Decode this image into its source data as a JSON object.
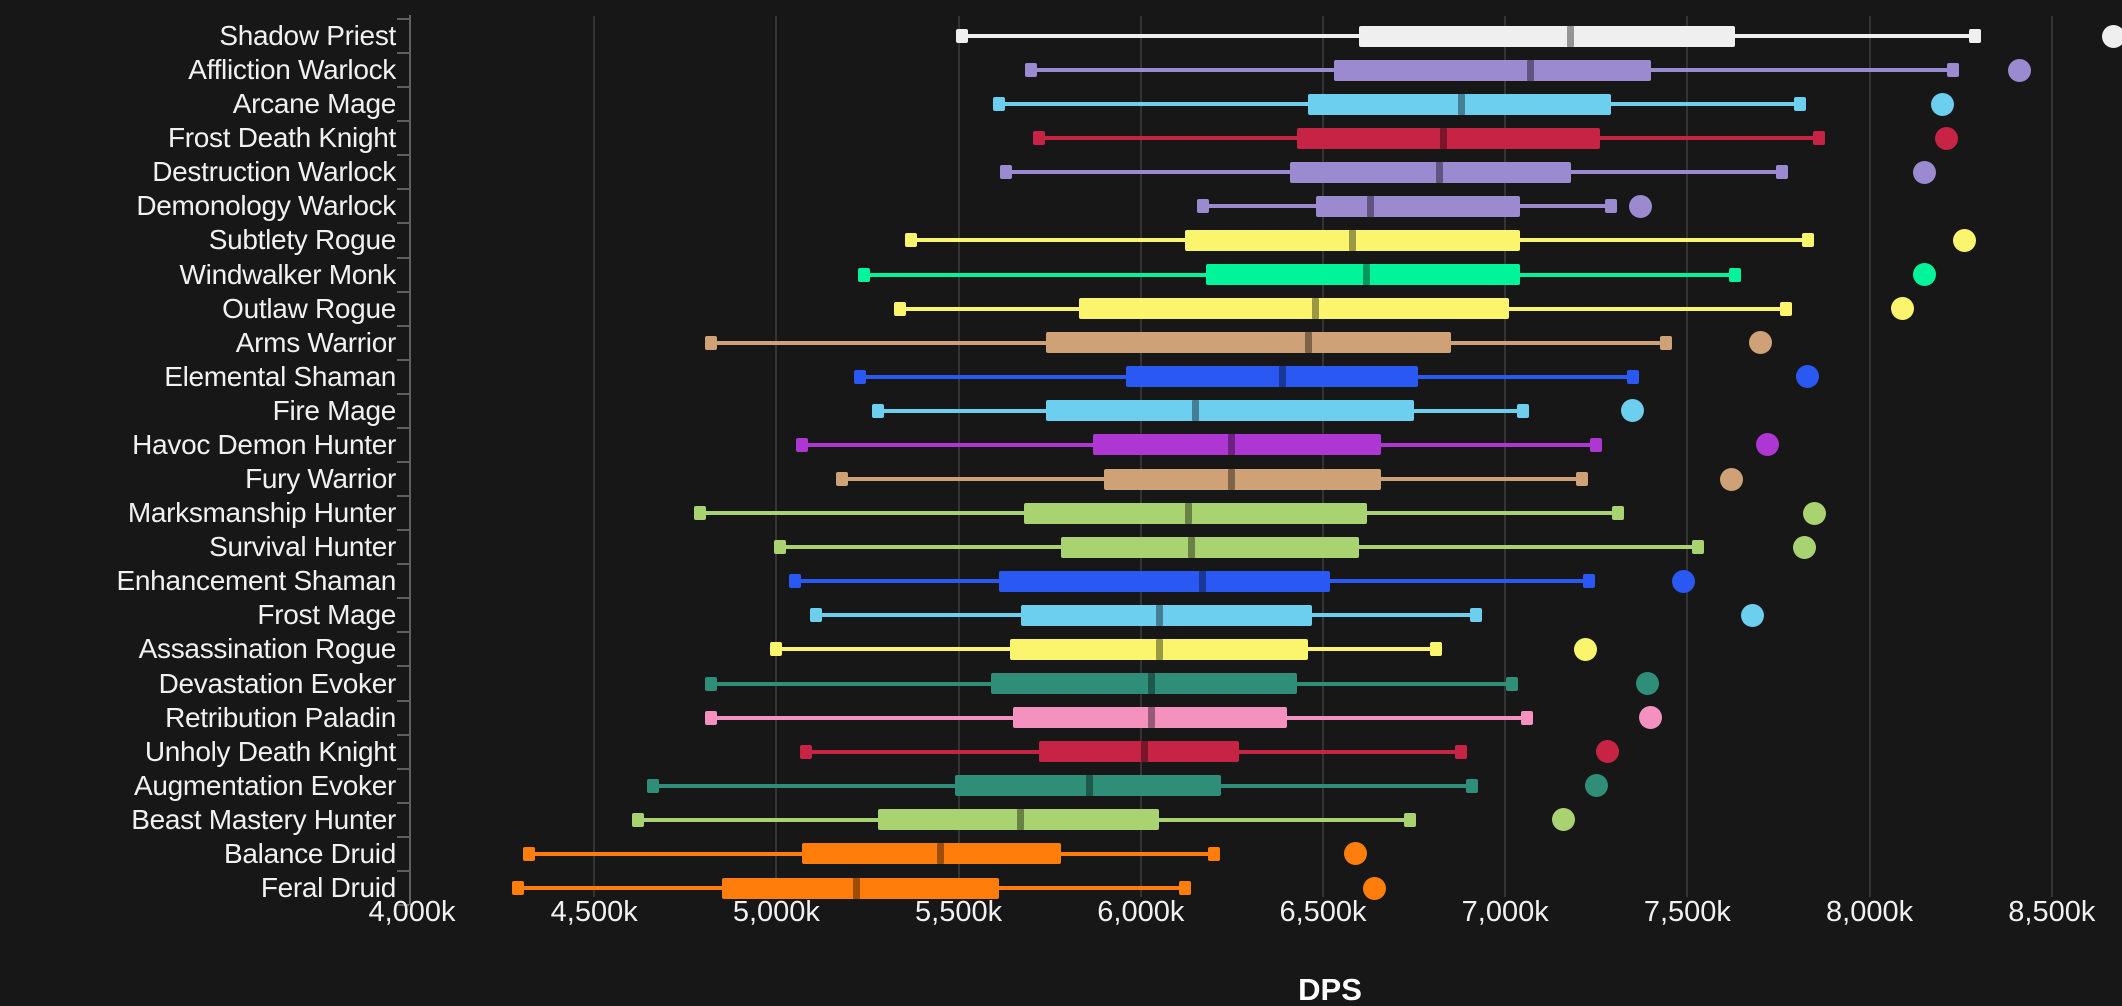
{
  "chart": {
    "xlabel": "DPS",
    "background_color": "#171717",
    "grid_color": "#343434",
    "axis_color": "#5f5f5f",
    "text_color": "#f1f1f1"
  },
  "chart_data": {
    "type": "boxplot",
    "orientation": "horizontal",
    "title": "",
    "xlabel": "DPS",
    "ylabel": "",
    "unit": "k (thousands of DPS)",
    "xlim": [
      4000,
      8700
    ],
    "grid": "vertical-only",
    "x_tick_labels": [
      "4,000k",
      "4,500k",
      "5,000k",
      "5,500k",
      "6,000k",
      "6,500k",
      "7,000k",
      "7,500k",
      "8,000k",
      "8,500k"
    ],
    "x_tick_values": [
      4000,
      4500,
      5000,
      5500,
      6000,
      6500,
      7000,
      7500,
      8000,
      8500
    ],
    "class_colors": {
      "priest": "#EFEFEF",
      "warlock": "#9B8AD0",
      "mage": "#6DCFF0",
      "death-knight": "#C62345",
      "rogue": "#FBF56E",
      "monk": "#00F59B",
      "warrior": "#CEA177",
      "shaman": "#2A58F2",
      "demon-hunter": "#AE36D3",
      "hunter": "#A9D271",
      "evoker": "#2F8E78",
      "paladin": "#F491BE",
      "druid": "#FF7D0A"
    },
    "series": [
      {
        "label": "Shadow Priest",
        "class": "priest",
        "whisker_min": 5510,
        "q1": 6600,
        "median": 7180,
        "q3": 7630,
        "whisker_max": 8290,
        "outlier_max": 8670
      },
      {
        "label": "Affliction Warlock",
        "class": "warlock",
        "whisker_min": 5700,
        "q1": 6530,
        "median": 7070,
        "q3": 7400,
        "whisker_max": 8230,
        "outlier_max": 8410
      },
      {
        "label": "Arcane Mage",
        "class": "mage",
        "whisker_min": 5610,
        "q1": 6460,
        "median": 6880,
        "q3": 7290,
        "whisker_max": 7810,
        "outlier_max": 8200
      },
      {
        "label": "Frost Death Knight",
        "class": "death-knight",
        "whisker_min": 5720,
        "q1": 6430,
        "median": 6830,
        "q3": 7260,
        "whisker_max": 7860,
        "outlier_max": 8210
      },
      {
        "label": "Destruction Warlock",
        "class": "warlock",
        "whisker_min": 5630,
        "q1": 6410,
        "median": 6820,
        "q3": 7180,
        "whisker_max": 7760,
        "outlier_max": 8150
      },
      {
        "label": "Demonology Warlock",
        "class": "warlock",
        "whisker_min": 6170,
        "q1": 6480,
        "median": 6630,
        "q3": 7040,
        "whisker_max": 7290,
        "outlier_max": 7370
      },
      {
        "label": "Subtlety Rogue",
        "class": "rogue",
        "whisker_min": 5370,
        "q1": 6120,
        "median": 6580,
        "q3": 7040,
        "whisker_max": 7830,
        "outlier_max": 8260
      },
      {
        "label": "Windwalker Monk",
        "class": "monk",
        "whisker_min": 5240,
        "q1": 6180,
        "median": 6620,
        "q3": 7040,
        "whisker_max": 7630,
        "outlier_max": 8150
      },
      {
        "label": "Outlaw Rogue",
        "class": "rogue",
        "whisker_min": 5340,
        "q1": 5830,
        "median": 6480,
        "q3": 7010,
        "whisker_max": 7770,
        "outlier_max": 8090
      },
      {
        "label": "Arms Warrior",
        "class": "warrior",
        "whisker_min": 4820,
        "q1": 5740,
        "median": 6460,
        "q3": 6850,
        "whisker_max": 7440,
        "outlier_max": 7700
      },
      {
        "label": "Elemental Shaman",
        "class": "shaman",
        "whisker_min": 5230,
        "q1": 5960,
        "median": 6390,
        "q3": 6760,
        "whisker_max": 7350,
        "outlier_max": 7830
      },
      {
        "label": "Fire Mage",
        "class": "mage",
        "whisker_min": 5280,
        "q1": 5740,
        "median": 6150,
        "q3": 6750,
        "whisker_max": 7050,
        "outlier_max": 7350
      },
      {
        "label": "Havoc Demon Hunter",
        "class": "demon-hunter",
        "whisker_min": 5070,
        "q1": 5870,
        "median": 6250,
        "q3": 6660,
        "whisker_max": 7250,
        "outlier_max": 7720
      },
      {
        "label": "Fury Warrior",
        "class": "warrior",
        "whisker_min": 5180,
        "q1": 5900,
        "median": 6250,
        "q3": 6660,
        "whisker_max": 7210,
        "outlier_max": 7620
      },
      {
        "label": "Marksmanship Hunter",
        "class": "hunter",
        "whisker_min": 4790,
        "q1": 5680,
        "median": 6130,
        "q3": 6620,
        "whisker_max": 7310,
        "outlier_max": 7850
      },
      {
        "label": "Survival Hunter",
        "class": "hunter",
        "whisker_min": 5010,
        "q1": 5780,
        "median": 6140,
        "q3": 6600,
        "whisker_max": 7530,
        "outlier_max": 7820
      },
      {
        "label": "Enhancement Shaman",
        "class": "shaman",
        "whisker_min": 5050,
        "q1": 5610,
        "median": 6170,
        "q3": 6520,
        "whisker_max": 7230,
        "outlier_max": 7490
      },
      {
        "label": "Frost Mage",
        "class": "mage",
        "whisker_min": 5110,
        "q1": 5670,
        "median": 6050,
        "q3": 6470,
        "whisker_max": 6920,
        "outlier_max": 7680
      },
      {
        "label": "Assassination Rogue",
        "class": "rogue",
        "whisker_min": 5000,
        "q1": 5640,
        "median": 6050,
        "q3": 6460,
        "whisker_max": 6810,
        "outlier_max": 7220
      },
      {
        "label": "Devastation Evoker",
        "class": "evoker",
        "whisker_min": 4820,
        "q1": 5590,
        "median": 6030,
        "q3": 6430,
        "whisker_max": 7020,
        "outlier_max": 7390
      },
      {
        "label": "Retribution Paladin",
        "class": "paladin",
        "whisker_min": 4820,
        "q1": 5650,
        "median": 6030,
        "q3": 6400,
        "whisker_max": 7060,
        "outlier_max": 7400
      },
      {
        "label": "Unholy Death Knight",
        "class": "death-knight",
        "whisker_min": 5080,
        "q1": 5720,
        "median": 6010,
        "q3": 6270,
        "whisker_max": 6880,
        "outlier_max": 7280
      },
      {
        "label": "Augmentation Evoker",
        "class": "evoker",
        "whisker_min": 4660,
        "q1": 5490,
        "median": 5860,
        "q3": 6220,
        "whisker_max": 6910,
        "outlier_max": 7250
      },
      {
        "label": "Beast Mastery Hunter",
        "class": "hunter",
        "whisker_min": 4620,
        "q1": 5280,
        "median": 5670,
        "q3": 6050,
        "whisker_max": 6740,
        "outlier_max": 7160
      },
      {
        "label": "Balance Druid",
        "class": "druid",
        "whisker_min": 4320,
        "q1": 5070,
        "median": 5450,
        "q3": 5780,
        "whisker_max": 6200,
        "outlier_max": 6590
      },
      {
        "label": "Feral Druid",
        "class": "druid",
        "whisker_min": 4290,
        "q1": 4850,
        "median": 5220,
        "q3": 5610,
        "whisker_max": 6120,
        "outlier_max": 6640
      }
    ]
  }
}
